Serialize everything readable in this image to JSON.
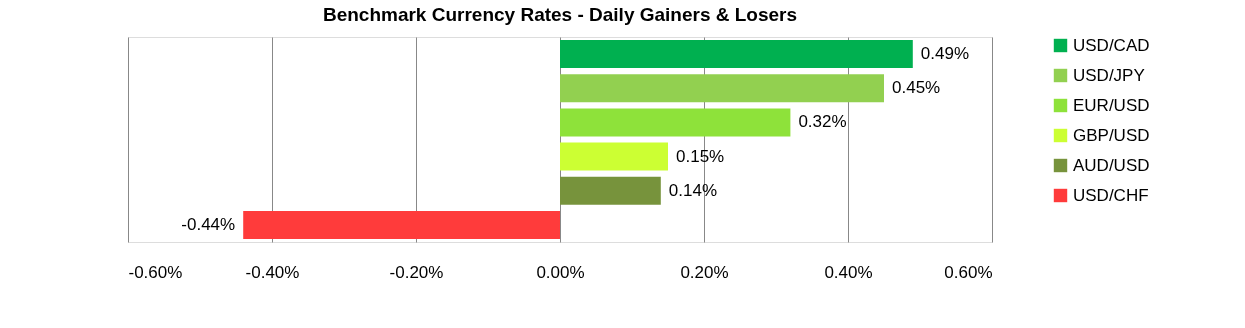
{
  "chart_data": {
    "type": "bar",
    "orientation": "horizontal",
    "title": "Benchmark Currency Rates - Daily Gainers & Losers",
    "categories": [
      null,
      null,
      null,
      null,
      null,
      null
    ],
    "series": [
      {
        "name": "USD/CAD",
        "color": "#00b050",
        "values": [
          0.49,
          null,
          null,
          null,
          null,
          null
        ],
        "value_labels": [
          "0.49%",
          null,
          null,
          null,
          null,
          null
        ]
      },
      {
        "name": "USD/JPY",
        "color": "#92d050",
        "values": [
          null,
          0.45,
          null,
          null,
          null,
          null
        ],
        "value_labels": [
          null,
          "0.45%",
          null,
          null,
          null,
          null
        ]
      },
      {
        "name": "EUR/USD",
        "color": "#8ee23a",
        "values": [
          null,
          null,
          0.32,
          null,
          null,
          null
        ],
        "value_labels": [
          null,
          null,
          "0.32%",
          null,
          null,
          null
        ]
      },
      {
        "name": "GBP/USD",
        "color": "#ccff33",
        "values": [
          null,
          null,
          null,
          0.15,
          null,
          null
        ],
        "value_labels": [
          null,
          null,
          null,
          "0.15%",
          null,
          null
        ]
      },
      {
        "name": "AUD/USD",
        "color": "#77933c",
        "values": [
          null,
          null,
          null,
          null,
          0.14,
          null
        ],
        "value_labels": [
          null,
          null,
          null,
          null,
          "0.14%",
          null
        ]
      },
      {
        "name": "USD/CHF",
        "color": "#ff3b3b",
        "values": [
          null,
          null,
          null,
          null,
          null,
          -0.44
        ],
        "value_labels": [
          null,
          null,
          null,
          null,
          null,
          "-0.44%"
        ]
      }
    ],
    "xlim": [
      -0.6,
      0.6
    ],
    "xticks": [
      {
        "value": -0.6,
        "label": "-0.60%"
      },
      {
        "value": -0.4,
        "label": "-0.40%"
      },
      {
        "value": -0.2,
        "label": "-0.20%"
      },
      {
        "value": 0,
        "label": "0.00%"
      },
      {
        "value": 0.2,
        "label": "0.20%"
      },
      {
        "value": 0.4,
        "label": "0.40%"
      },
      {
        "value": 0.6,
        "label": "0.60%"
      }
    ],
    "grid": "x",
    "legend": "right"
  }
}
